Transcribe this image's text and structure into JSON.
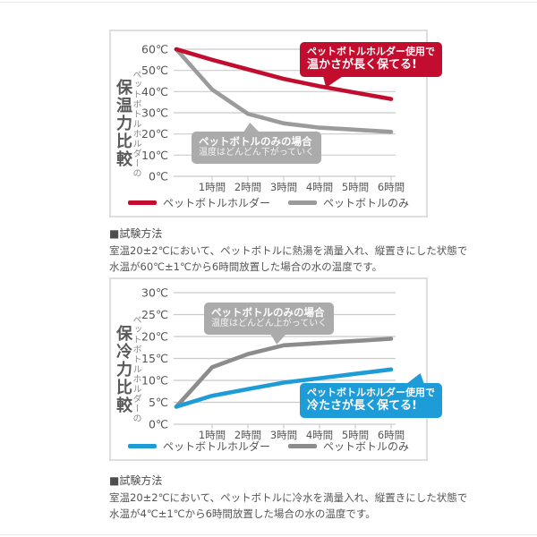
{
  "page": {
    "background": "#ffffff",
    "rule_color": "#e9e9e9"
  },
  "chart_data": [
    {
      "type": "line",
      "title": "ペットボトルホルダーの保温力比較",
      "title_vertical_small": "ペットボトルホルダーの",
      "title_vertical_big": "保温力比較",
      "x": [
        0,
        1,
        2,
        3,
        4,
        5,
        6
      ],
      "x_tick_labels": [
        "1時間",
        "2時間",
        "3時間",
        "4時間",
        "5時間",
        "6時間"
      ],
      "y_unit": "℃",
      "y_ticks": [
        60,
        50,
        40,
        30,
        20,
        10,
        0
      ],
      "ylim": [
        0,
        60
      ],
      "grid": true,
      "legend_position": "bottom",
      "series": [
        {
          "name": "ペットボトルホルダー",
          "color": "#c30d2e",
          "values": [
            60,
            55,
            50.5,
            46,
            42.5,
            39.5,
            36.5
          ]
        },
        {
          "name": "ペットボトルのみ",
          "color": "#9b9b9b",
          "values": [
            60,
            41,
            29.5,
            25,
            23,
            22,
            21
          ]
        }
      ],
      "annotations": {
        "accent": {
          "line1": "ペットボトルホルダー使用で",
          "line2": "温かさが長く保てる!",
          "bg": "#c30d2e",
          "text": "#ffffff"
        },
        "gray": {
          "line1": "ペットボトルのみの場合",
          "line2": "温度はどんどん下がっていく",
          "bg": "#ababab",
          "text": "#ffffff"
        }
      }
    },
    {
      "type": "line",
      "title": "ペットボトルホルダーの保冷力比較",
      "title_vertical_small": "ペットボトルホルダーの",
      "title_vertical_big": "保冷力比較",
      "x": [
        0,
        1,
        2,
        3,
        4,
        5,
        6
      ],
      "x_tick_labels": [
        "1時間",
        "2時間",
        "3時間",
        "4時間",
        "5時間",
        "6時間"
      ],
      "y_unit": "℃",
      "y_ticks": [
        30,
        25,
        20,
        15,
        10,
        5,
        0
      ],
      "ylim": [
        0,
        30
      ],
      "grid": true,
      "legend_position": "bottom",
      "series": [
        {
          "name": "ペットボトルホルダー",
          "color": "#1e9cd8",
          "values": [
            4,
            6.5,
            8,
            9.5,
            10.5,
            11.5,
            12.5
          ]
        },
        {
          "name": "ペットボトルのみ",
          "color": "#8c8c8c",
          "values": [
            4,
            13,
            16,
            18,
            18.5,
            19,
            19.5
          ]
        }
      ],
      "annotations": {
        "accent": {
          "line1": "ペットボトルホルダー使用で",
          "line2": "冷たさが長く保てる!",
          "bg": "#1e9cd8",
          "text": "#ffffff"
        },
        "gray": {
          "line1": "ペットボトルのみの場合",
          "line2": "温度はどんどん上がっていく",
          "bg": "#ababab",
          "text": "#ffffff"
        }
      }
    }
  ],
  "notes": [
    {
      "heading": "■試験方法",
      "line1": "室温20±2℃において、ペットボトルに熱湯を満量入れ、縦置きにした状態で",
      "line2": "水温が60℃±1℃から6時間放置した場合の水の温度です。"
    },
    {
      "heading": "■試験方法",
      "line1": "室温20±2℃において、ペットボトルに冷水を満量入れ、縦置きにした状態で",
      "line2": "水温が4℃±1℃から6時間放置した場合の水の温度です。"
    }
  ],
  "colors": {
    "accent_red": "#c30d2e",
    "accent_blue": "#1e9cd8",
    "line_gray": "#9b9b9b",
    "callout_gray": "#ababab",
    "gridline": "#cbcbcb",
    "panel_border": "#dedede",
    "text_dark": "#555555"
  }
}
